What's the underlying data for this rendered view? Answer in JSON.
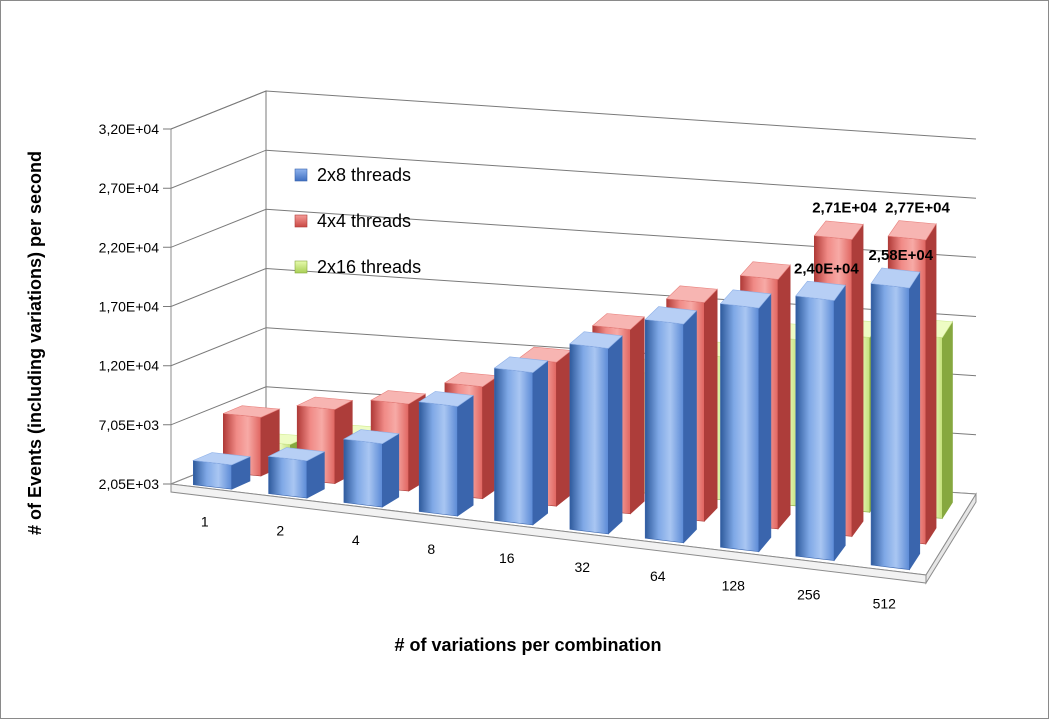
{
  "chart_data": {
    "type": "bar",
    "categories": [
      "1",
      "2",
      "4",
      "8",
      "16",
      "32",
      "64",
      "128",
      "256",
      "512"
    ],
    "yticks": [
      "2,05E+03",
      "7,05E+03",
      "1,20E+04",
      "1,70E+04",
      "2,20E+04",
      "2,70E+04",
      "3,20E+04"
    ],
    "ylim": [
      2050,
      32000
    ],
    "xlabel": "# of variations per combination",
    "ylabel": "# of Events (including variations) per second",
    "legend_position": "upper-left",
    "grid": true,
    "series": [
      {
        "name": "2x8 threads",
        "color": "#4f81bd",
        "values": [
          4100,
          5200,
          7400,
          11300,
          14900,
          17700,
          20500,
          22600,
          24000,
          25800
        ]
      },
      {
        "name": "4x4 threads",
        "color": "#c0504d",
        "values": [
          7000,
          8300,
          9400,
          11500,
          14200,
          17600,
          20500,
          23100,
          27100,
          27700
        ]
      },
      {
        "name": "2x16 threads",
        "color": "#9bbb59",
        "values": [
          3600,
          4800,
          6100,
          8000,
          10400,
          12200,
          14100,
          16100,
          16800,
          17300
        ]
      }
    ],
    "data_labels": [
      {
        "series": 0,
        "index": 8,
        "text": "2,40E+04"
      },
      {
        "series": 0,
        "index": 9,
        "text": "2,58E+04"
      },
      {
        "series": 1,
        "index": 8,
        "text": "2,71E+04"
      },
      {
        "series": 1,
        "index": 9,
        "text": "2,77E+04"
      }
    ]
  }
}
